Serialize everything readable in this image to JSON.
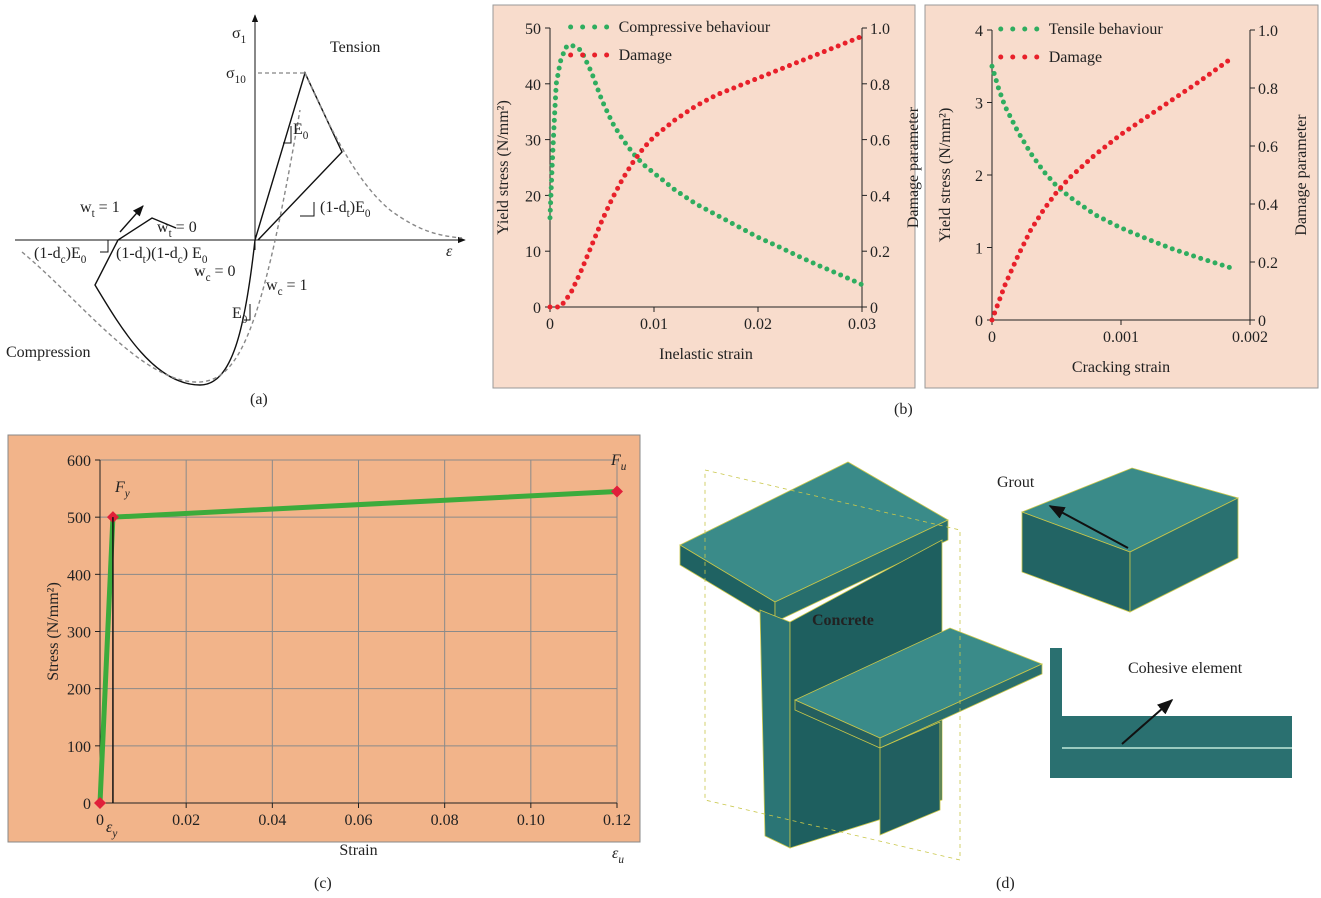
{
  "chart_data": [
    {
      "type": "line",
      "line_style": "dotted",
      "background": "#f8dccc",
      "legend": "upper left",
      "xlabel": "Inelastic strain",
      "ylabel": "Yield stress (N/mm²)",
      "y2label": "Damage parameter",
      "xlim": [
        0,
        0.03
      ],
      "xticks": [
        0,
        0.01,
        0.02,
        0.03
      ],
      "ylim": [
        0,
        50
      ],
      "yticks": [
        0,
        10,
        20,
        30,
        40,
        50
      ],
      "y2lim": [
        0,
        1
      ],
      "y2ticks": [
        0,
        0.2,
        0.4,
        0.6,
        0.8,
        {
          "value": 1,
          "label": "1.0"
        }
      ],
      "series": [
        {
          "name": "Compressive behaviour",
          "color": "#2fad5f",
          "x": [
            0,
            0.0002,
            0.0004,
            0.0006,
            0.001,
            0.0015,
            0.002,
            0.003,
            0.004,
            0.005,
            0.006,
            0.007,
            0.008,
            0.009,
            0.01,
            0.012,
            0.014,
            0.016,
            0.018,
            0.02,
            0.022,
            0.024,
            0.026,
            0.028,
            0.03
          ],
          "values": [
            16,
            25,
            33,
            40,
            44,
            46.5,
            47,
            46,
            42,
            37,
            33,
            30,
            27.5,
            25.5,
            24,
            21,
            18.5,
            16.5,
            14.5,
            12.5,
            10.8,
            9,
            7.3,
            5.7,
            4
          ]
        },
        {
          "name": "Damage",
          "color": "#e8202a",
          "axis": "y2",
          "x": [
            0,
            0.001,
            0.002,
            0.003,
            0.004,
            0.005,
            0.006,
            0.007,
            0.008,
            0.009,
            0.01,
            0.012,
            0.014,
            0.016,
            0.018,
            0.02,
            0.022,
            0.024,
            0.026,
            0.028,
            0.03
          ],
          "values": [
            0,
            0,
            0.05,
            0.13,
            0.22,
            0.31,
            0.39,
            0.46,
            0.52,
            0.57,
            0.61,
            0.67,
            0.72,
            0.76,
            0.79,
            0.82,
            0.85,
            0.88,
            0.91,
            0.94,
            0.97
          ]
        }
      ]
    },
    {
      "type": "line",
      "line_style": "dotted",
      "background": "#f8dccc",
      "legend": "upper left",
      "xlabel": "Cracking strain",
      "ylabel": "Yield stress (N/mm²)",
      "y2label": "Damage parameter",
      "xlim": [
        0,
        0.002
      ],
      "xticks": [
        0,
        0.001,
        0.002
      ],
      "ylim": [
        0,
        4
      ],
      "yticks": [
        0,
        1,
        2,
        3,
        4
      ],
      "y2lim": [
        0,
        1
      ],
      "y2ticks": [
        0,
        0.2,
        0.4,
        0.6,
        0.8,
        {
          "value": 1,
          "label": "1.0"
        }
      ],
      "series": [
        {
          "name": "Tensile behaviour",
          "color": "#2fad5f",
          "x": [
            0,
            5e-05,
            0.0001,
            0.0002,
            0.0003,
            0.0004,
            0.0005,
            0.0006,
            0.0008,
            0.001,
            0.0012,
            0.0014,
            0.0016,
            0.00185
          ],
          "values": [
            3.5,
            3.2,
            2.95,
            2.6,
            2.3,
            2.05,
            1.85,
            1.7,
            1.45,
            1.27,
            1.12,
            0.98,
            0.86,
            0.72
          ]
        },
        {
          "name": "Damage",
          "color": "#e8202a",
          "axis": "y2",
          "x": [
            0,
            5e-05,
            0.0001,
            0.0002,
            0.0003,
            0.0004,
            0.0005,
            0.0006,
            0.0008,
            0.001,
            0.0012,
            0.0014,
            0.0016,
            0.00185
          ],
          "values": [
            0,
            0.06,
            0.12,
            0.22,
            0.31,
            0.38,
            0.44,
            0.49,
            0.57,
            0.64,
            0.7,
            0.76,
            0.82,
            0.9
          ]
        }
      ]
    },
    {
      "type": "line",
      "background": "#f2b48a",
      "grid": true,
      "color": "#3cab3c",
      "marker": "diamond",
      "marker_color": "#e0203a",
      "xlabel": "Strain",
      "ylabel": "Stress (N/mm²)",
      "xlim": [
        0,
        0.12
      ],
      "xticks": [
        0,
        0.02,
        0.04,
        0.06,
        0.08,
        {
          "value": 0.1,
          "label": "0.10"
        },
        0.12
      ],
      "ylim": [
        0,
        600
      ],
      "yticks": [
        0,
        100,
        200,
        300,
        400,
        500,
        600
      ],
      "x": [
        0,
        0.003,
        0.12
      ],
      "values": [
        0,
        500,
        545
      ],
      "annotations": [
        [
          "F",
          "y"
        ],
        [
          "F",
          "u"
        ],
        [
          "ε",
          "y"
        ],
        [
          "ε",
          "u"
        ]
      ]
    }
  ],
  "diagram_a": {
    "labels": [
      [
        "σ",
        "1"
      ],
      [
        "Tension"
      ],
      [
        "σ",
        "10"
      ],
      [
        "E",
        "0"
      ],
      [
        "(1-d",
        "t",
        ")E",
        "0"
      ],
      [
        "w",
        "t",
        " = 1"
      ],
      [
        "w",
        "t",
        " = 0"
      ],
      [
        "(1-d",
        "c",
        ")E",
        "0"
      ],
      [
        "(1-d",
        "t",
        ")(1-d",
        "c",
        ") E",
        "0"
      ],
      [
        "ε"
      ],
      [
        "w",
        "c",
        " = 0"
      ],
      [
        "w",
        "c",
        " = 1"
      ],
      [
        "E",
        "0"
      ],
      [
        "Compression"
      ]
    ]
  },
  "diagram_d": {
    "labels": [
      [
        "Grout"
      ],
      [
        "Concrete"
      ],
      [
        "Cohesive element"
      ]
    ]
  },
  "captions": [
    "(a)",
    "(b)",
    "(c)",
    "(d)"
  ]
}
